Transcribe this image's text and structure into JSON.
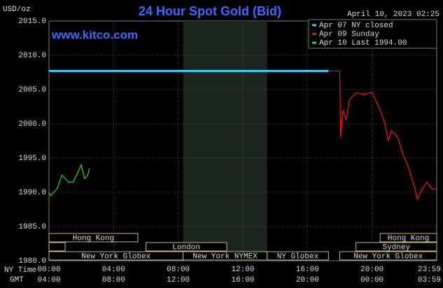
{
  "chart_data": {
    "type": "line",
    "title": "24 Hour Spot Gold (Bid)",
    "y_label": "USD/oz",
    "watermark": "www.kitco.com",
    "timestamp": "April 10, 2023 02:25",
    "x_row_labels": [
      "NY Time",
      "GMT"
    ],
    "xlim": [
      0,
      24
    ],
    "xticks": [
      {
        "value": 0,
        "label": "00:00"
      },
      {
        "value": 4,
        "label": "04:00"
      },
      {
        "value": 8,
        "label": "08:00"
      },
      {
        "value": 12,
        "label": "12:00"
      },
      {
        "value": 16,
        "label": "16:00"
      },
      {
        "value": 20,
        "label": "20:00"
      },
      {
        "value": 23.983,
        "label": "23:59"
      }
    ],
    "gmt_labels": [
      "04:00",
      "08:00",
      "12:00",
      "16:00",
      "20:00",
      "00:00",
      "03:59"
    ],
    "ylim": [
      1980,
      2015
    ],
    "yticks": [
      {
        "value": 1980,
        "label": "1980.0"
      },
      {
        "value": 1985,
        "label": "1985.0"
      },
      {
        "value": 1990,
        "label": "1990.0"
      },
      {
        "value": 1995,
        "label": "1995.0"
      },
      {
        "value": 2000,
        "label": "2000.0"
      },
      {
        "value": 2005,
        "label": "2005.0"
      },
      {
        "value": 2010,
        "label": "2010.0"
      },
      {
        "value": 2015,
        "label": "2015.0"
      }
    ],
    "grid": true,
    "shaded": [
      8.3,
      13.5
    ],
    "sessions": [
      [
        {
          "label": "New York Globex",
          "start": 0,
          "end": 8.3
        },
        {
          "label": "New York NYMEX",
          "start": 8.3,
          "end": 13.5
        },
        {
          "label": "NY Globex",
          "start": 13.5,
          "end": 17.3
        },
        {
          "label": "New York Globex",
          "start": 18.0,
          "end": 24
        }
      ],
      [
        {
          "label": null,
          "start": 0,
          "end": 1.0
        },
        {
          "label": "London",
          "start": 6.0,
          "end": 11.0
        },
        {
          "label": "Sydney",
          "start": 19.0,
          "end": 24
        }
      ],
      [
        {
          "label": "Hong Kong",
          "start": 0,
          "end": 5.5
        },
        {
          "label": "Hong Kong",
          "start": 20.5,
          "end": 24
        }
      ]
    ],
    "series": [
      {
        "name": "Apr 07 NY closed",
        "color": "#33ccff",
        "x": [
          0,
          17.3
        ],
        "values": [
          2007.7,
          2007.7
        ]
      },
      {
        "name": "Apr 09 Sunday",
        "color": "#ff1010",
        "x": [
          17.3,
          18.0,
          18.05,
          18.2,
          18.4,
          18.6,
          19.0,
          19.5,
          20.0,
          20.3,
          20.5,
          20.8,
          21.0,
          21.2,
          21.6,
          21.9,
          22.2,
          22.6,
          22.8,
          23.1,
          23.4,
          23.7,
          24.0
        ],
        "values": [
          2007.7,
          2007.7,
          1998.0,
          2002.0,
          2000.5,
          2003.5,
          2004.5,
          2004.3,
          2004.6,
          2003.0,
          2002.0,
          2000.0,
          1997.5,
          1999.0,
          1998.0,
          1995.5,
          1994.0,
          1991.0,
          1989.0,
          1990.5,
          1991.5,
          1990.5,
          1990.5
        ]
      },
      {
        "name": "Apr 10 Last 1994.00",
        "color": "#22dd22",
        "x": [
          0,
          0.1,
          0.3,
          0.5,
          0.8,
          1.0,
          1.2,
          1.5,
          1.8,
          2.0,
          2.2,
          2.4,
          2.5
        ],
        "values": [
          1990.0,
          1989.5,
          1990.0,
          1990.5,
          1992.5,
          1992.0,
          1991.5,
          1991.5,
          1993.0,
          1994.0,
          1992.0,
          1992.5,
          1993.5
        ]
      }
    ]
  }
}
